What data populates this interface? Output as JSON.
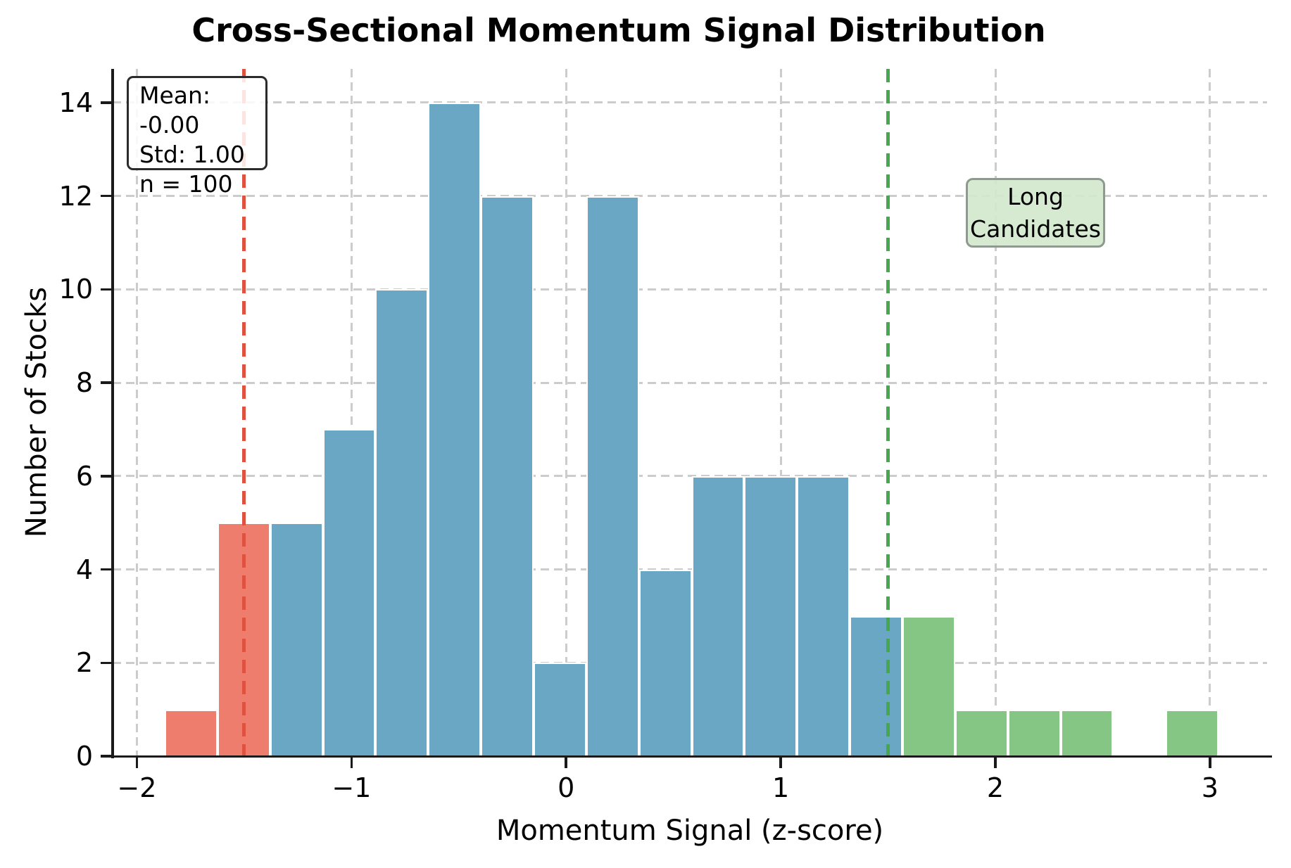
{
  "title": "Cross-Sectional Momentum Signal Distribution",
  "stats_box": {
    "line1": "Mean: -0.00",
    "line2": "Std: 1.00",
    "line3": "n = 100"
  },
  "annotation_long": {
    "line1": "Long",
    "line2": "Candidates"
  },
  "colors": {
    "bar_short": "#ee7d6d",
    "bar_neutral": "#69a7c4",
    "bar_long": "#85c685",
    "bar_edge": "#ffffff",
    "short_line": "#df5240",
    "long_line": "#47a64e",
    "gridline": "#cccccc",
    "spine": "#1a1a1a",
    "text": "#000000",
    "stats_box_border": "#2b2b2b",
    "long_box_fill": "#d3e8ce",
    "long_box_border": "#8f998f"
  },
  "chart_data": {
    "type": "bar",
    "subtype": "histogram",
    "title": "Cross-Sectional Momentum Signal Distribution",
    "xlabel": "Momentum Signal (z-score)",
    "ylabel": "Number of Stocks",
    "n": 100,
    "mean": "-0.00",
    "std": "1.00",
    "bin_start": -1.87,
    "bin_width": 0.2455,
    "counts": [
      1,
      5,
      5,
      7,
      10,
      14,
      12,
      2,
      12,
      4,
      6,
      6,
      6,
      3,
      3,
      1,
      1,
      1,
      0,
      1
    ],
    "bin_categories": [
      "short",
      "short",
      "neutral",
      "neutral",
      "neutral",
      "neutral",
      "neutral",
      "neutral",
      "neutral",
      "neutral",
      "neutral",
      "neutral",
      "neutral",
      "neutral",
      "long",
      "long",
      "long",
      "long",
      "long",
      "long"
    ],
    "threshold_short": -1.5,
    "threshold_long": 1.5,
    "x_ticks": [
      -2,
      -1,
      0,
      1,
      2,
      3
    ],
    "x_tick_labels": [
      "−2",
      "−1",
      "0",
      "1",
      "2",
      "3"
    ],
    "y_ticks": [
      0,
      2,
      4,
      6,
      8,
      10,
      12,
      14
    ],
    "y_tick_labels": [
      "0",
      "2",
      "4",
      "6",
      "8",
      "10",
      "12",
      "14"
    ],
    "xlim": [
      -2.113,
      3.266
    ],
    "ylim": [
      0,
      14.72
    ],
    "grid": true,
    "grid_style": "dashed",
    "legend_position": "none"
  }
}
